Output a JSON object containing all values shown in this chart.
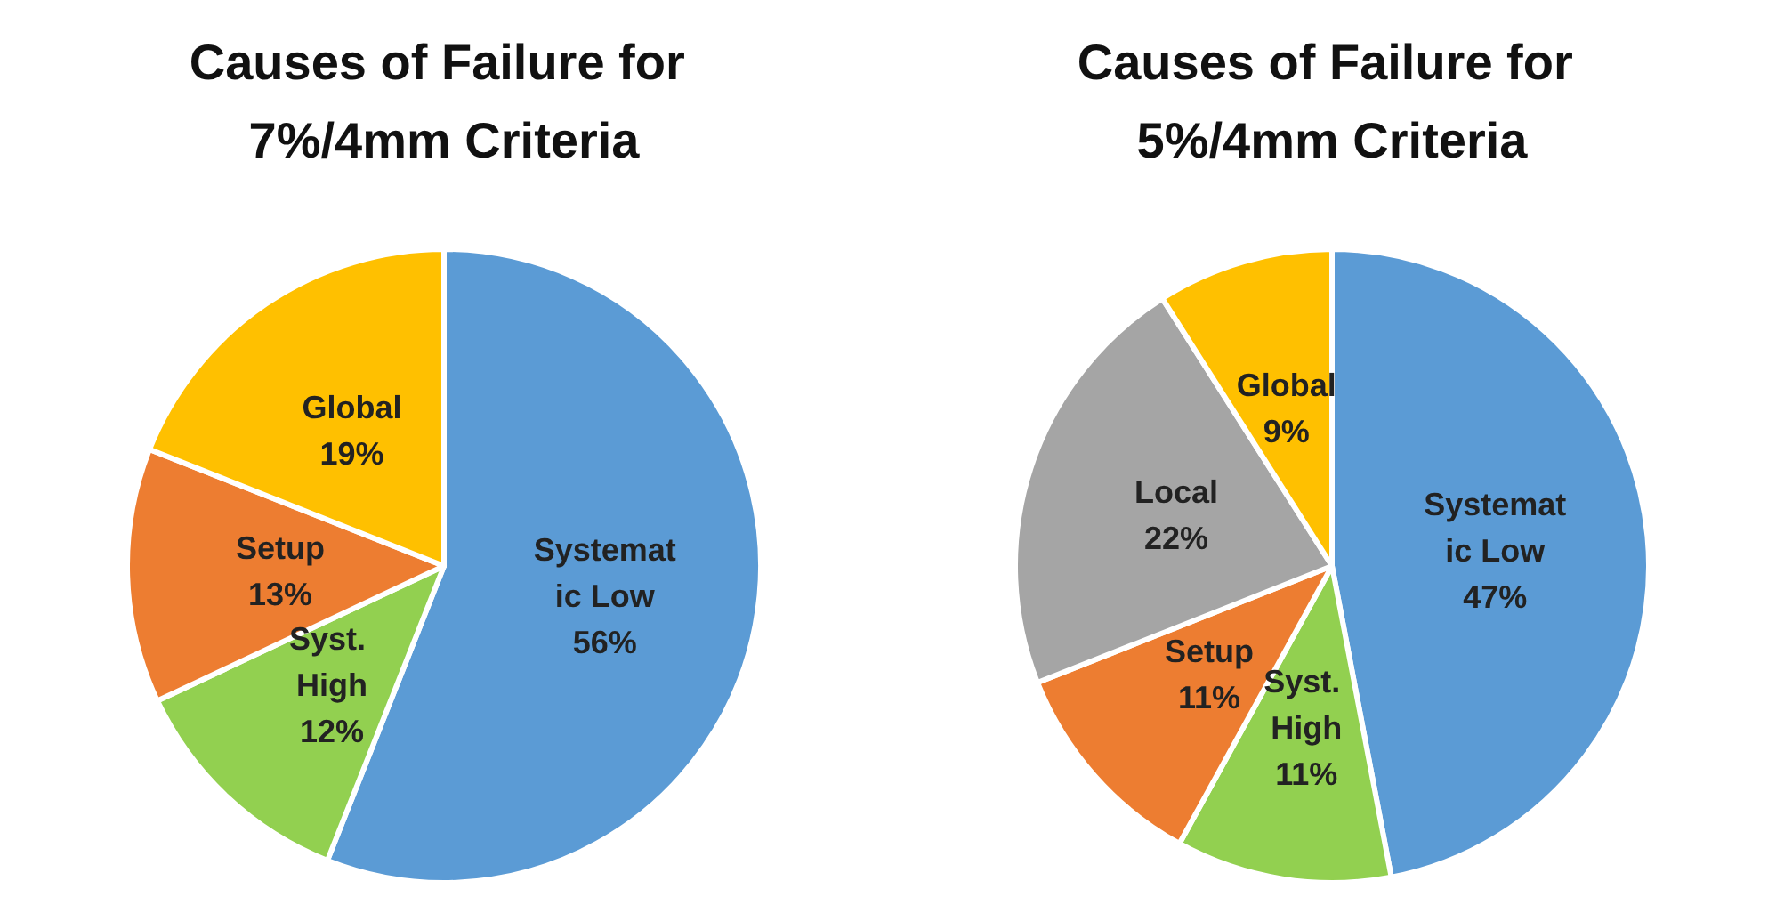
{
  "chart_data": [
    {
      "type": "pie",
      "title": "Causes of Failure for 7%/4mm Criteria",
      "categories": [
        "Systematic Low",
        "Syst. High",
        "Setup",
        "Global"
      ],
      "values": [
        56,
        12,
        13,
        19
      ],
      "colors": [
        "#5b9bd5",
        "#92d050",
        "#ed7d31",
        "#ffc000"
      ],
      "value_labels": [
        "56%",
        "12%",
        "13%",
        "19%"
      ],
      "legend": false
    },
    {
      "type": "pie",
      "title": "Causes of Failure for 5%/4mm Criteria",
      "categories": [
        "Systematic Low",
        "Syst. High",
        "Setup",
        "Local",
        "Global"
      ],
      "values": [
        47,
        11,
        11,
        22,
        9
      ],
      "colors": [
        "#5b9bd5",
        "#92d050",
        "#ed7d31",
        "#a5a5a5",
        "#ffc000"
      ],
      "value_labels": [
        "47%",
        "11%",
        "11%",
        "22%",
        "9%"
      ],
      "legend": false
    }
  ]
}
